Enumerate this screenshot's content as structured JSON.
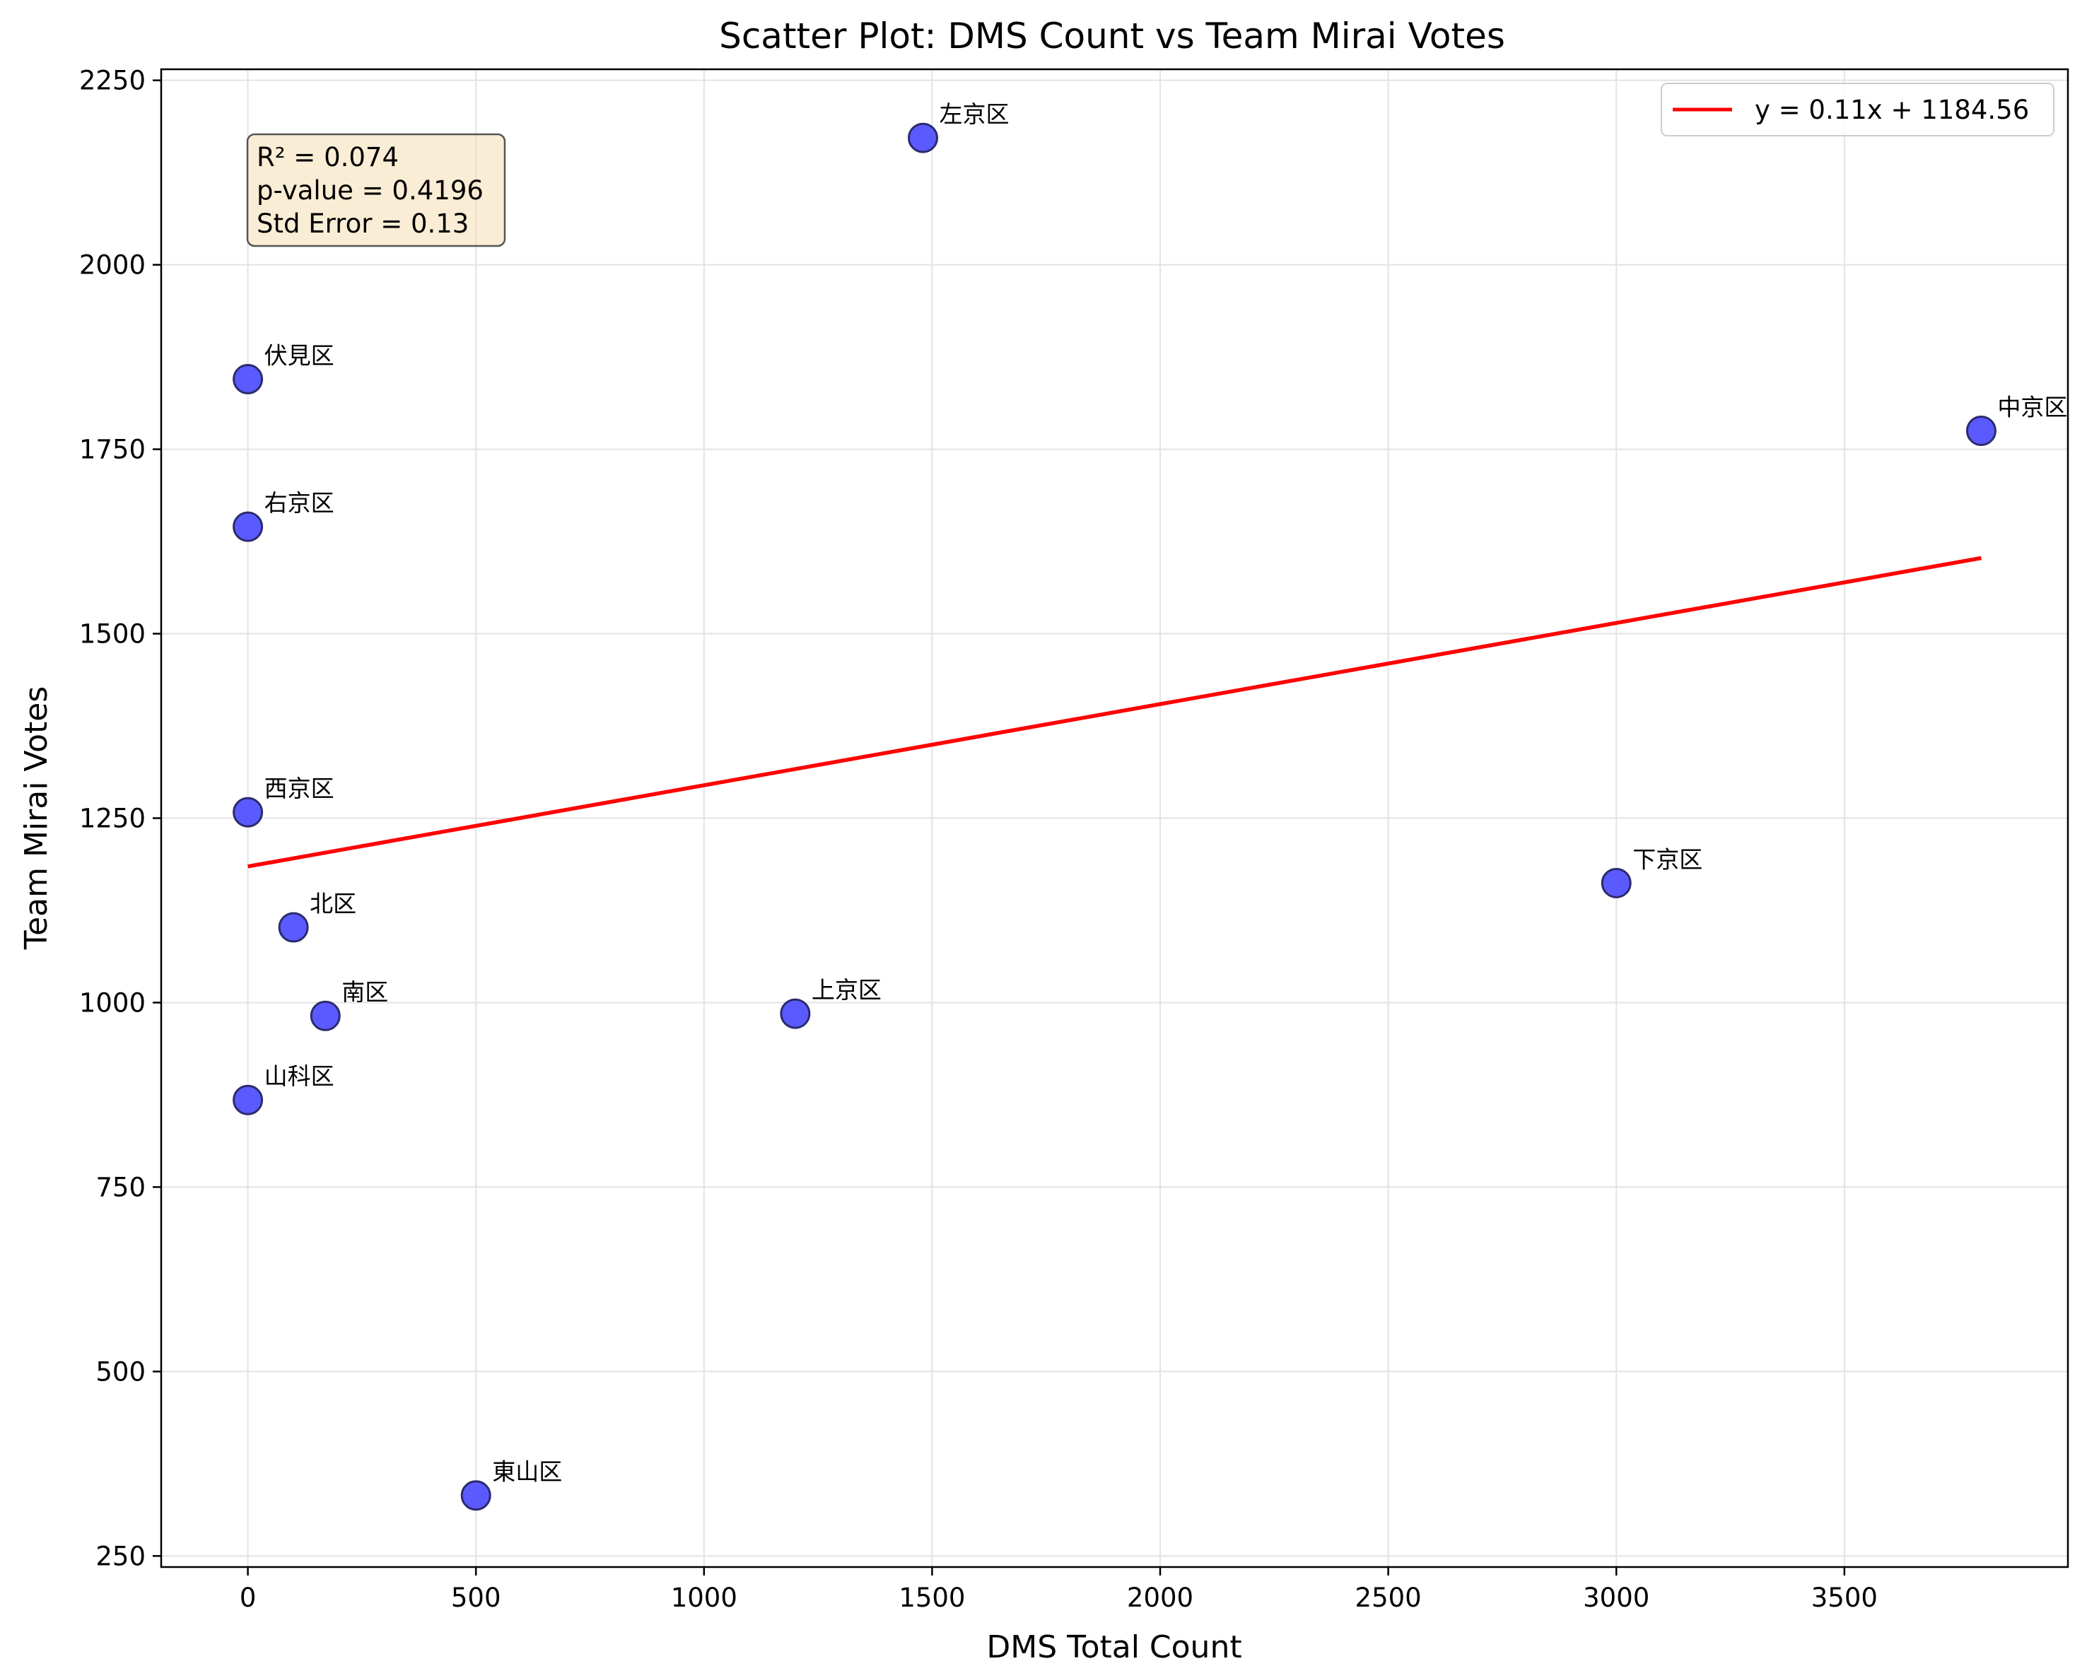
{
  "chart_data": {
    "type": "scatter",
    "title": "Scatter Plot: DMS Count vs Team Mirai Votes",
    "xlabel": "DMS Total Count",
    "ylabel": "Team Mirai Votes",
    "xlim": [
      -190,
      3990
    ],
    "ylim": [
      235,
      2265
    ],
    "xticks": [
      0,
      500,
      1000,
      1500,
      2000,
      2500,
      3000,
      3500
    ],
    "yticks": [
      250,
      500,
      750,
      1000,
      1250,
      1500,
      1750,
      2000,
      2250
    ],
    "grid": true,
    "points": [
      {
        "label": "左京区",
        "x": 1480,
        "y": 2172
      },
      {
        "label": "伏見区",
        "x": 0,
        "y": 1845
      },
      {
        "label": "中京区",
        "x": 3800,
        "y": 1775
      },
      {
        "label": "右京区",
        "x": 0,
        "y": 1645
      },
      {
        "label": "西京区",
        "x": 0,
        "y": 1258
      },
      {
        "label": "下京区",
        "x": 3000,
        "y": 1162
      },
      {
        "label": "北区",
        "x": 100,
        "y": 1102
      },
      {
        "label": "上京区",
        "x": 1200,
        "y": 985
      },
      {
        "label": "南区",
        "x": 170,
        "y": 982
      },
      {
        "label": "山科区",
        "x": 0,
        "y": 868
      },
      {
        "label": "東山区",
        "x": 500,
        "y": 332
      }
    ],
    "fit_line": {
      "slope": 0.11,
      "intercept": 1184.56,
      "x_range": [
        0,
        3800
      ],
      "label": "y = 0.11x + 1184.56",
      "color": "#ff0000"
    },
    "stats": [
      "R² = 0.074",
      "p-value = 0.4196",
      "Std Error = 0.13"
    ],
    "legend_position": "top-right",
    "stats_position": "top-left",
    "point_color": "#5a5aff",
    "point_edge_color": "#2b2b6e"
  }
}
